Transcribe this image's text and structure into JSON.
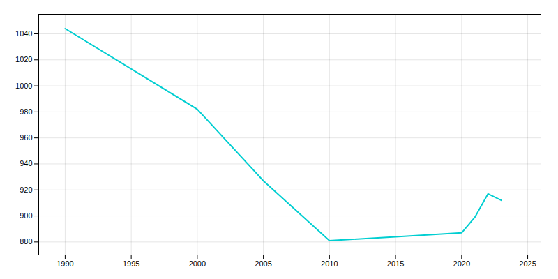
{
  "chart_data": {
    "type": "line",
    "x": [
      1990,
      2000,
      2005,
      2010,
      2015,
      2020,
      2021,
      2022,
      2023
    ],
    "values": [
      1044,
      982,
      927,
      881,
      884,
      887,
      899,
      917,
      912
    ],
    "color": "#00CED1",
    "xlim": [
      1988,
      2026
    ],
    "xticks": [
      1990,
      1995,
      2000,
      2005,
      2010,
      2015,
      2020,
      2025
    ],
    "ylim": [
      870,
      1055
    ],
    "yticks": [
      880,
      900,
      920,
      940,
      960,
      980,
      1000,
      1020,
      1040
    ],
    "grid": true
  }
}
